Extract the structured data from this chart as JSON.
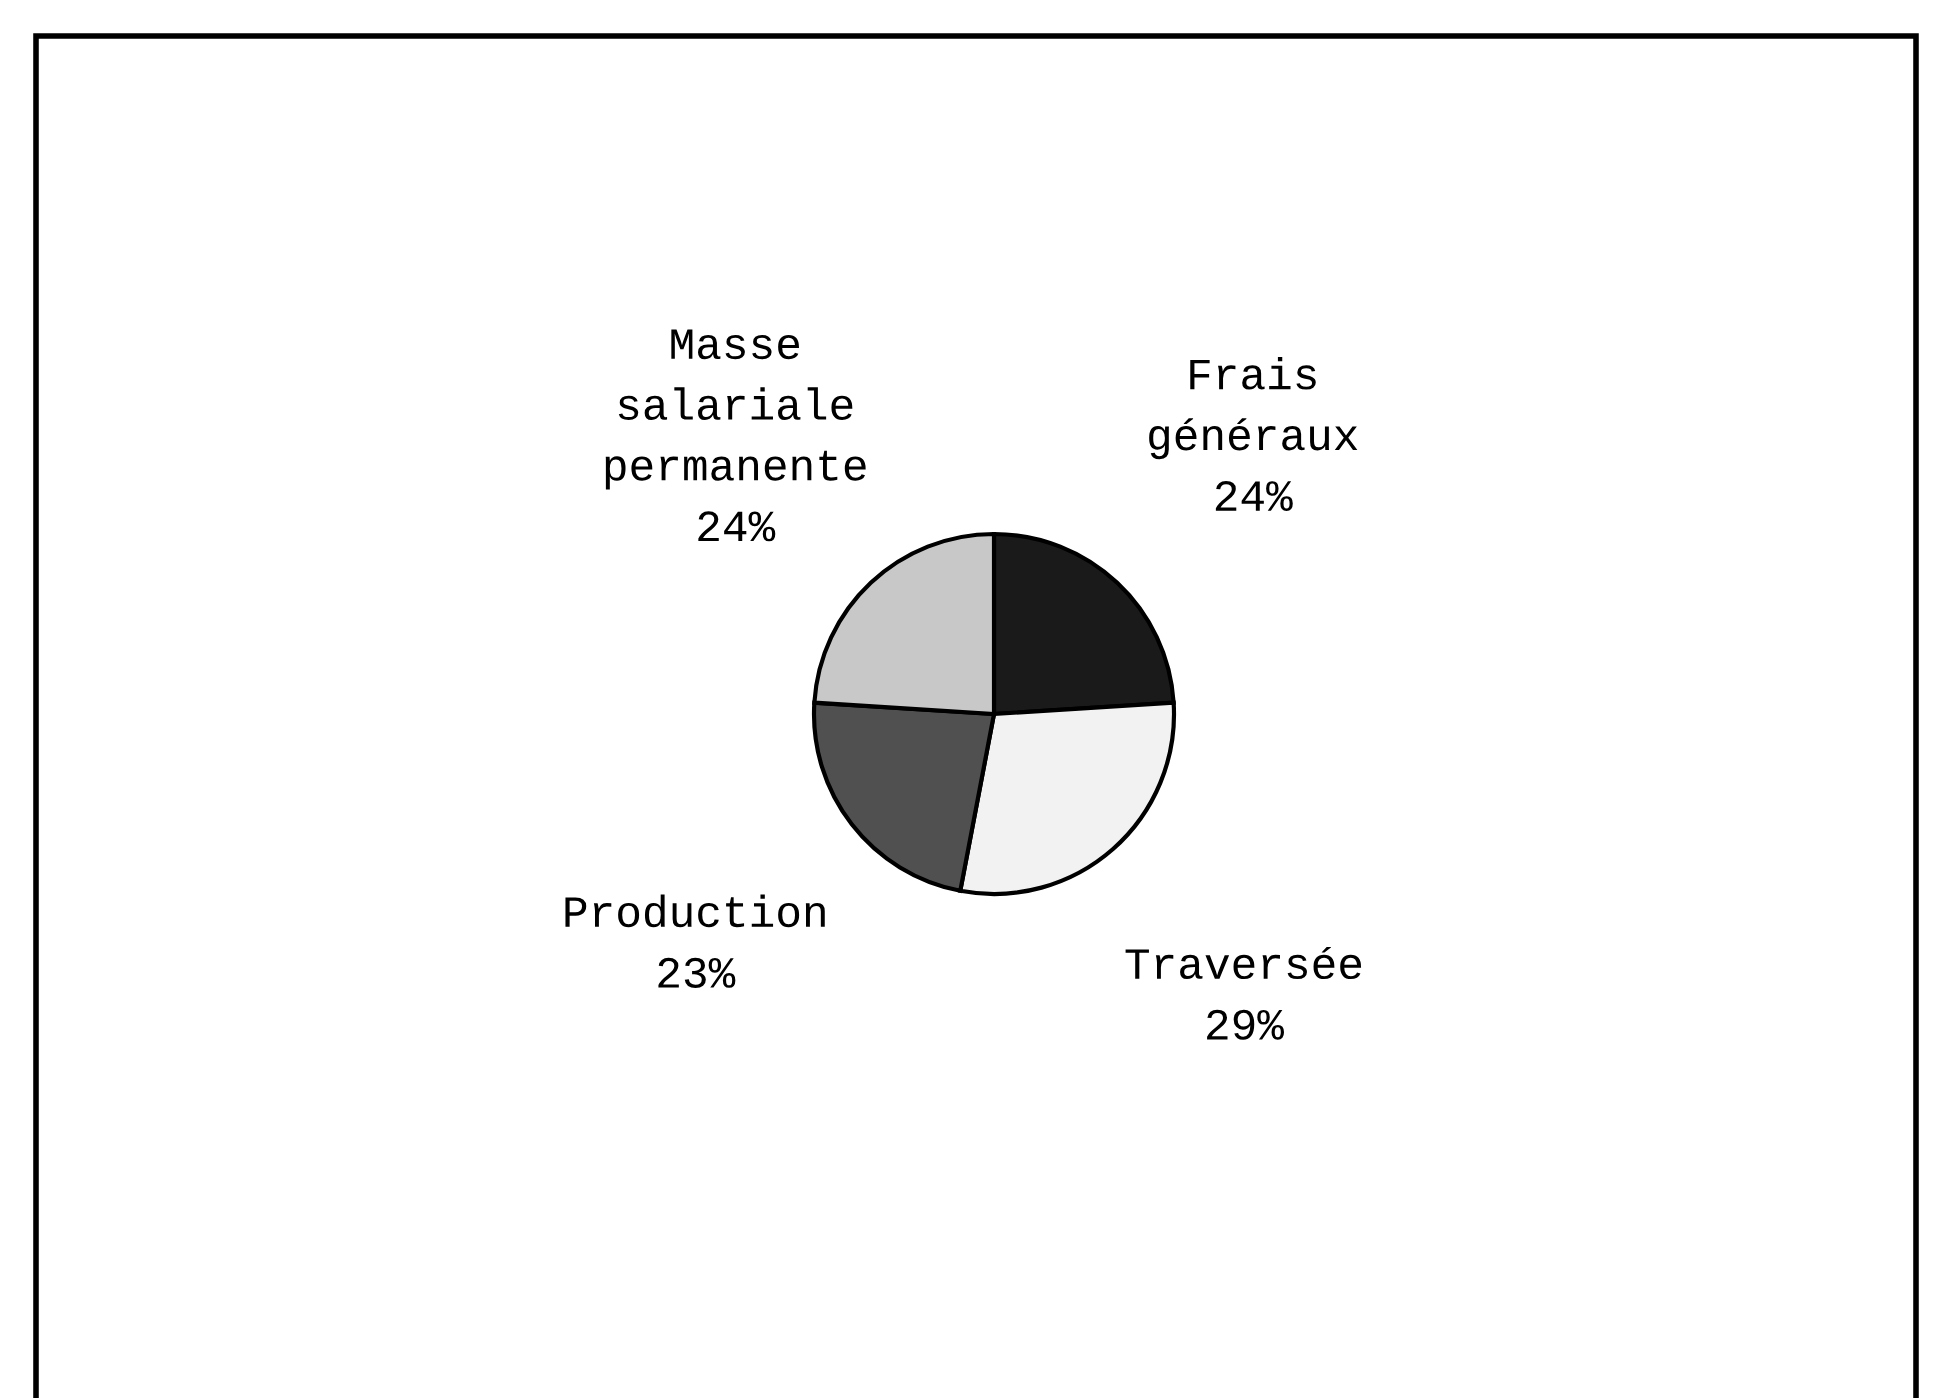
{
  "chart_data": {
    "type": "pie",
    "categories": [
      "Frais généraux",
      "Traversée",
      "Production",
      "Masse salariale permanente"
    ],
    "values": [
      24,
      29,
      23,
      24
    ],
    "value_labels": [
      "24%",
      "29%",
      "23%",
      "24%"
    ],
    "colors": [
      "#1a1a1a",
      "#f2f2f2",
      "#505050",
      "#c8c8c8"
    ],
    "legend": false
  }
}
